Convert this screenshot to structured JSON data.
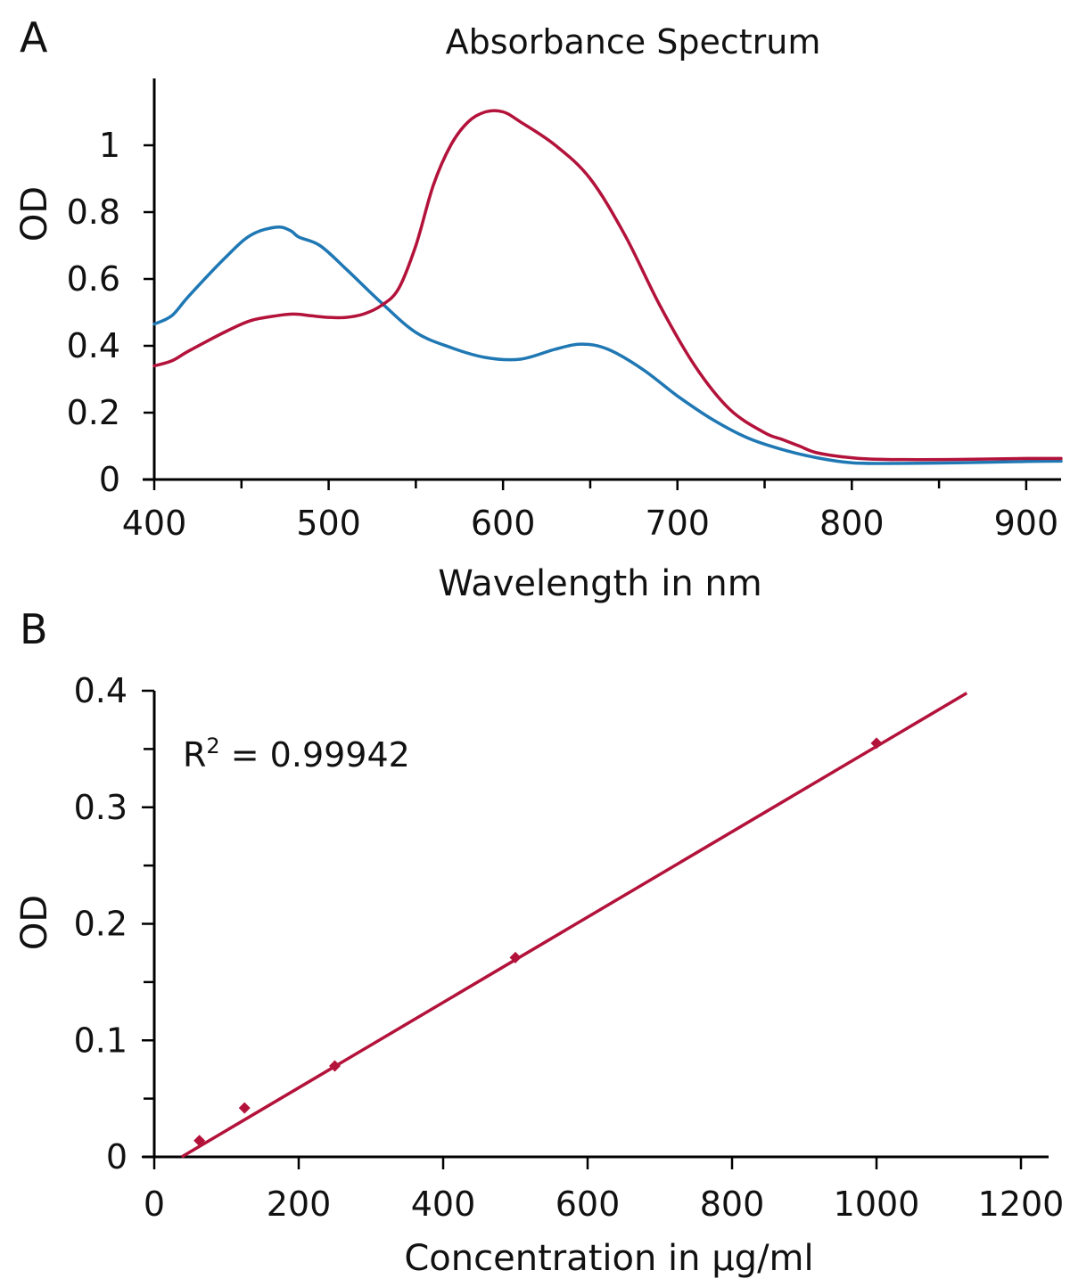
{
  "chart_data": [
    {
      "panel": "A",
      "type": "line",
      "title": "Absorbance Spectrum",
      "xlabel": "Wavelength in nm",
      "ylabel": "OD",
      "xlim": [
        400,
        920
      ],
      "ylim": [
        0,
        1.2
      ],
      "xticks": [
        400,
        500,
        600,
        700,
        800,
        900
      ],
      "yticks": [
        0,
        0.2,
        0.4,
        0.6,
        0.8,
        1
      ],
      "xtick_labels": [
        "400",
        "500",
        "600",
        "700",
        "800",
        "900"
      ],
      "ytick_labels": [
        "0",
        "0.2",
        "0.4",
        "0.6",
        "0.8",
        "1"
      ],
      "grid": false,
      "series": [
        {
          "color": "#1f78b4",
          "x": [
            400,
            410,
            420,
            440,
            455,
            470,
            478,
            483,
            495,
            510,
            530,
            550,
            570,
            590,
            610,
            630,
            645,
            660,
            680,
            700,
            720,
            740,
            760,
            780,
            800,
            820,
            860,
            900,
            920
          ],
          "y": [
            0.465,
            0.49,
            0.55,
            0.66,
            0.73,
            0.755,
            0.745,
            0.725,
            0.7,
            0.63,
            0.53,
            0.44,
            0.395,
            0.365,
            0.36,
            0.39,
            0.405,
            0.39,
            0.33,
            0.25,
            0.18,
            0.125,
            0.09,
            0.065,
            0.05,
            0.048,
            0.05,
            0.054,
            0.055
          ]
        },
        {
          "color": "#b3123a",
          "x": [
            400,
            410,
            420,
            440,
            455,
            470,
            480,
            490,
            500,
            510,
            520,
            530,
            540,
            550,
            560,
            570,
            580,
            590,
            600,
            610,
            630,
            650,
            670,
            690,
            710,
            730,
            750,
            760,
            770,
            780,
            800,
            820,
            860,
            900,
            920
          ],
          "y": [
            0.34,
            0.355,
            0.385,
            0.44,
            0.475,
            0.49,
            0.495,
            0.49,
            0.485,
            0.485,
            0.495,
            0.52,
            0.57,
            0.7,
            0.88,
            1.0,
            1.07,
            1.1,
            1.1,
            1.07,
            1.0,
            0.9,
            0.73,
            0.52,
            0.34,
            0.21,
            0.14,
            0.12,
            0.1,
            0.08,
            0.065,
            0.06,
            0.06,
            0.063,
            0.063
          ]
        }
      ]
    },
    {
      "panel": "B",
      "type": "scatter",
      "xlabel": "Concentration in µg/ml",
      "ylabel": "OD",
      "xlim": [
        0,
        1250
      ],
      "ylim": [
        0,
        0.4
      ],
      "xticks": [
        0,
        200,
        400,
        600,
        800,
        1000,
        1200
      ],
      "yticks": [
        0,
        0.1,
        0.2,
        0.3,
        0.4
      ],
      "minor_yticks": [
        0.05,
        0.15,
        0.25,
        0.35
      ],
      "xtick_labels": [
        "0",
        "200",
        "400",
        "600",
        "800",
        "1000",
        "1200"
      ],
      "ytick_labels": [
        "0",
        "0.1",
        "0.2",
        "0.3",
        "0.4"
      ],
      "grid": false,
      "points": {
        "color": "#b3123a",
        "x": [
          62.5,
          125,
          250,
          500,
          1000
        ],
        "y": [
          0.014,
          0.042,
          0.078,
          0.171,
          0.355
        ]
      },
      "trendline": {
        "color": "#b3123a",
        "x": [
          38,
          1125
        ],
        "y": [
          0,
          0.398
        ]
      },
      "annotation": {
        "r_label": "R",
        "superscript": "2",
        "value_text": " = 0.99942"
      }
    }
  ]
}
